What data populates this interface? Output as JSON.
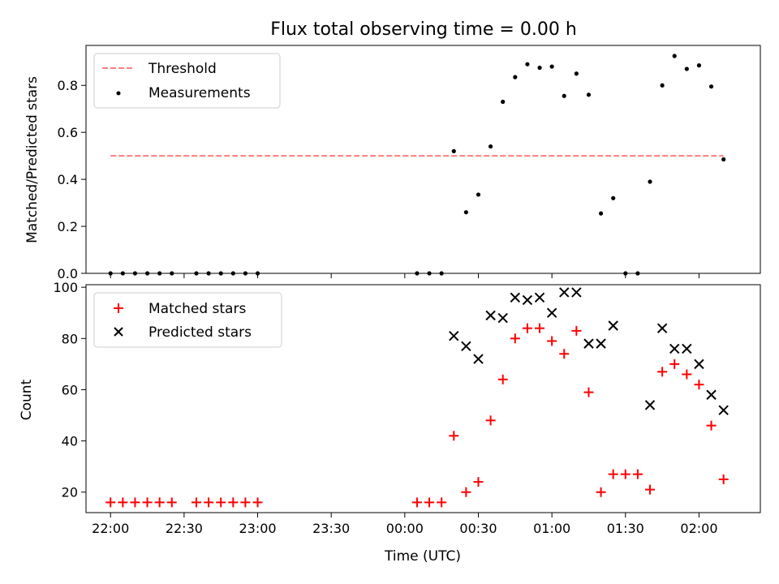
{
  "chart_data": [
    {
      "type": "scatter",
      "title": "Flux total observing time = 0.00 h",
      "xlabel": "",
      "ylabel": "Matched/Predicted stars",
      "ylim": [
        0,
        0.97
      ],
      "yticks": [
        0.0,
        0.2,
        0.4,
        0.6,
        0.8
      ],
      "ytick_labels": [
        "0.0",
        "0.2",
        "0.4",
        "0.6",
        "0.8"
      ],
      "x_range": [
        "21:50",
        "02:25"
      ],
      "legend": {
        "placement": "upper-left",
        "entries": [
          "Threshold",
          "Measurements"
        ]
      },
      "threshold": {
        "name": "Threshold",
        "value": 0.5,
        "x": [
          "22:00",
          "02:10"
        ],
        "color": "#ff7f7f",
        "style": "dashed"
      },
      "series": [
        {
          "name": "Measurements",
          "marker": "dot",
          "color": "#000000",
          "x": [
            "22:00",
            "22:05",
            "22:10",
            "22:15",
            "22:20",
            "22:25",
            "22:35",
            "22:40",
            "22:45",
            "22:50",
            "22:55",
            "23:00",
            "00:05",
            "00:10",
            "00:15",
            "00:20",
            "00:25",
            "00:30",
            "00:35",
            "00:40",
            "00:45",
            "00:50",
            "00:55",
            "01:00",
            "01:05",
            "01:10",
            "01:15",
            "01:20",
            "01:25",
            "01:30",
            "01:35",
            "01:40",
            "01:45",
            "01:50",
            "01:55",
            "02:00",
            "02:05",
            "02:10"
          ],
          "y": [
            0,
            0,
            0,
            0,
            0,
            0,
            0,
            0,
            0,
            0,
            0,
            0,
            0,
            0,
            0,
            0.52,
            0.26,
            0.335,
            0.54,
            0.73,
            0.835,
            0.89,
            0.875,
            0.88,
            0.755,
            0.85,
            0.76,
            0.255,
            0.32,
            0,
            0,
            0.39,
            0.8,
            0.925,
            0.87,
            0.885,
            0.795,
            0.485
          ]
        }
      ]
    },
    {
      "type": "scatter",
      "title": "",
      "xlabel": "Time (UTC)",
      "ylabel": "Count",
      "ylim": [
        12,
        101
      ],
      "yticks": [
        20,
        40,
        60,
        80,
        100
      ],
      "ytick_labels": [
        "20",
        "40",
        "60",
        "80",
        "100"
      ],
      "x_range": [
        "21:50",
        "02:25"
      ],
      "xticks": [
        "22:00",
        "22:30",
        "23:00",
        "23:30",
        "00:00",
        "00:30",
        "01:00",
        "01:30",
        "02:00"
      ],
      "legend": {
        "placement": "upper-left",
        "entries": [
          "Matched stars",
          "Predicted stars"
        ]
      },
      "series": [
        {
          "name": "Matched stars",
          "marker": "plus",
          "color": "#ff0000",
          "x": [
            "22:00",
            "22:05",
            "22:10",
            "22:15",
            "22:20",
            "22:25",
            "22:35",
            "22:40",
            "22:45",
            "22:50",
            "22:55",
            "23:00",
            "00:05",
            "00:10",
            "00:15",
            "00:20",
            "00:25",
            "00:30",
            "00:35",
            "00:40",
            "00:45",
            "00:50",
            "00:55",
            "01:00",
            "01:05",
            "01:10",
            "01:15",
            "01:20",
            "01:25",
            "01:30",
            "01:35",
            "01:40",
            "01:45",
            "01:50",
            "01:55",
            "02:00",
            "02:05",
            "02:10"
          ],
          "y": [
            16,
            16,
            16,
            16,
            16,
            16,
            16,
            16,
            16,
            16,
            16,
            16,
            16,
            16,
            16,
            42,
            20,
            24,
            48,
            64,
            80,
            84,
            84,
            79,
            74,
            83,
            59,
            20,
            27,
            27,
            27,
            21,
            67,
            70,
            66,
            62,
            46,
            25
          ]
        },
        {
          "name": "Predicted stars",
          "marker": "x",
          "color": "#000000",
          "x": [
            "00:20",
            "00:25",
            "00:30",
            "00:35",
            "00:40",
            "00:45",
            "00:50",
            "00:55",
            "01:00",
            "01:05",
            "01:10",
            "01:15",
            "01:20",
            "01:25",
            "01:40",
            "01:45",
            "01:50",
            "01:55",
            "02:00",
            "02:05",
            "02:10"
          ],
          "y": [
            81,
            77,
            72,
            89,
            88,
            96,
            95,
            96,
            90,
            98,
            98,
            78,
            78,
            85,
            54,
            84,
            76,
            76,
            70,
            58,
            52
          ]
        }
      ]
    }
  ]
}
